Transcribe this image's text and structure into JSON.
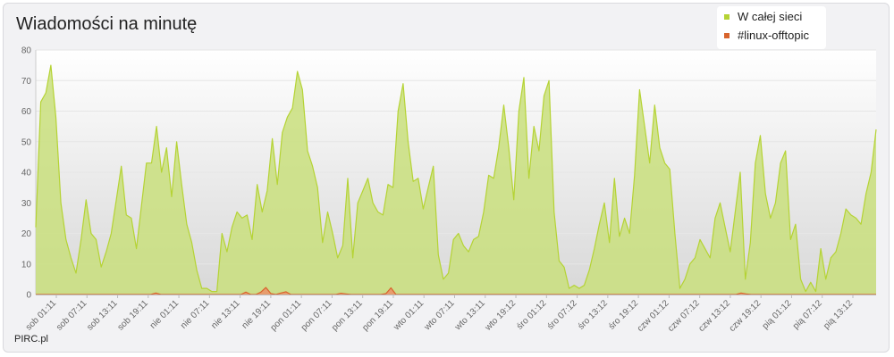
{
  "chart_data": {
    "type": "area",
    "title": "Wiadomości na minutę",
    "credit": "PIRC.pl",
    "ylim": [
      0,
      80
    ],
    "yticks": [
      0,
      10,
      20,
      30,
      40,
      50,
      60,
      70,
      80
    ],
    "grid": true,
    "legend_position": "top-right",
    "x_tick_labels": [
      "sob 01:11",
      "sob 07:11",
      "sob 13:11",
      "sob 19:11",
      "nie 01:11",
      "nie 07:11",
      "nie 13:11",
      "nie 19:11",
      "pon 01:11",
      "pon 07:11",
      "pon 13:11",
      "pon 19:11",
      "wto 01:11",
      "wto 07:11",
      "wto 13:11",
      "wto 19:12",
      "śro 01:12",
      "śro 07:12",
      "śro 13:12",
      "śro 19:12",
      "czw 01:12",
      "czw 07:12",
      "czw 13:12",
      "czw 19:12",
      "pią 01:12",
      "pią 07:12",
      "pią 13:12"
    ],
    "series": [
      {
        "name": "W całej sieci",
        "color": "#b5d334",
        "fill": "#c9df7c",
        "values": [
          22,
          63,
          66,
          75,
          58,
          30,
          18,
          12,
          7,
          18,
          31,
          20,
          18,
          9,
          14,
          20,
          31,
          42,
          26,
          25,
          15,
          29,
          43,
          43,
          55,
          40,
          48,
          32,
          50,
          36,
          23,
          17,
          8,
          2,
          2,
          1,
          1,
          20,
          14,
          22,
          27,
          25,
          26,
          18,
          36,
          27,
          34,
          51,
          36,
          53,
          58,
          61,
          73,
          67,
          47,
          42,
          35,
          17,
          27,
          20,
          12,
          16,
          38,
          12,
          30,
          34,
          38,
          30,
          27,
          26,
          36,
          35,
          60,
          69,
          50,
          37,
          38,
          28,
          35,
          42,
          13,
          5,
          7,
          18,
          20,
          16,
          14,
          18,
          19,
          27,
          39,
          38,
          48,
          62,
          48,
          31,
          60,
          71,
          38,
          55,
          47,
          65,
          70,
          27,
          11,
          9,
          2,
          3,
          2,
          3,
          8,
          15,
          23,
          30,
          17,
          38,
          19,
          25,
          20,
          39,
          67,
          55,
          43,
          62,
          48,
          43,
          41,
          20,
          2,
          5,
          10,
          12,
          18,
          15,
          12,
          25,
          30,
          22,
          14,
          27,
          40,
          5,
          17,
          43,
          52,
          33,
          25,
          30,
          43,
          47,
          18,
          23,
          5,
          1,
          4,
          1,
          15,
          5,
          12,
          14,
          20,
          28,
          26,
          25,
          23,
          33,
          40,
          54
        ]
      },
      {
        "name": "#linux-offtopic",
        "color": "#d8642d",
        "fill": "#e8996c",
        "values": [
          0,
          0,
          0,
          0,
          0,
          0,
          0,
          0,
          0,
          0,
          0,
          0,
          0,
          0,
          0,
          0,
          0,
          0,
          0,
          0,
          0,
          0,
          0,
          0,
          0.5,
          0,
          0,
          0,
          0,
          0,
          0,
          0,
          0,
          0,
          0,
          0,
          0,
          0,
          0,
          0,
          0,
          0,
          0.8,
          0,
          0,
          0.8,
          2.3,
          0.3,
          0,
          0.5,
          0.9,
          0,
          0,
          0,
          0,
          0,
          0,
          0,
          0,
          0,
          0,
          0.4,
          0.2,
          0,
          0,
          0,
          0,
          0,
          0,
          0,
          0.3,
          2.2,
          0,
          0,
          0,
          0,
          0,
          0,
          0,
          0,
          0,
          0,
          0,
          0,
          0,
          0,
          0,
          0,
          0,
          0,
          0,
          0,
          0,
          0,
          0,
          0,
          0,
          0,
          0,
          0,
          0,
          0,
          0,
          0,
          0,
          0,
          0,
          0,
          0,
          0,
          0,
          0,
          0,
          0,
          0,
          0,
          0,
          0,
          0,
          0,
          0,
          0,
          0,
          0,
          0,
          0,
          0,
          0,
          0,
          0,
          0,
          0,
          0,
          0,
          0,
          0,
          0,
          0,
          0,
          0,
          0,
          0.5,
          0.2,
          0,
          0,
          0,
          0,
          0,
          0,
          0,
          0,
          0,
          0,
          0,
          0,
          0,
          0,
          0,
          0,
          0,
          0,
          0,
          0,
          0,
          0,
          0,
          0,
          0,
          0
        ]
      }
    ]
  }
}
